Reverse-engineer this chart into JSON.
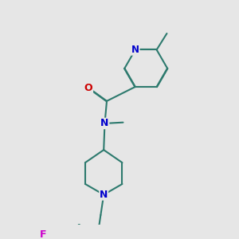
{
  "bg_color": "#e6e6e6",
  "bond_color": "#2d7a6e",
  "atom_colors": {
    "O": "#cc0000",
    "N": "#0000cc",
    "F": "#cc00cc"
  },
  "bond_width": 1.5,
  "font_size": 8.5
}
